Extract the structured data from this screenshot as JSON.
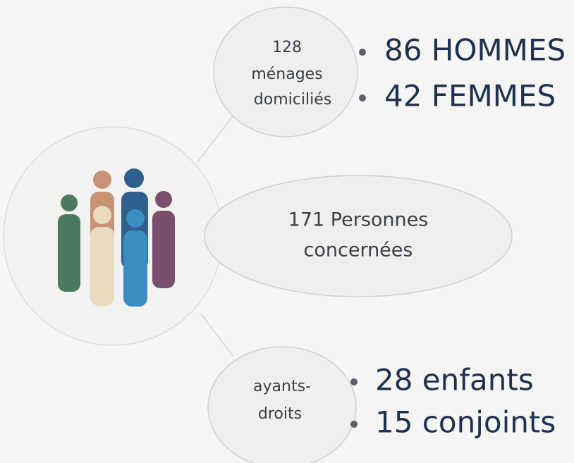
{
  "nodes": [
    {
      "label_lines": [
        "128",
        "ménages",
        "domiciliés"
      ],
      "items": [
        "86 HOMMES",
        "42 FEMMES"
      ]
    },
    {
      "label_lines": [
        "171 Personnes",
        "concernées"
      ]
    },
    {
      "label_lines": [
        "ayants-",
        "droits"
      ],
      "items": [
        "28 enfants",
        "15 conjoints"
      ]
    }
  ]
}
